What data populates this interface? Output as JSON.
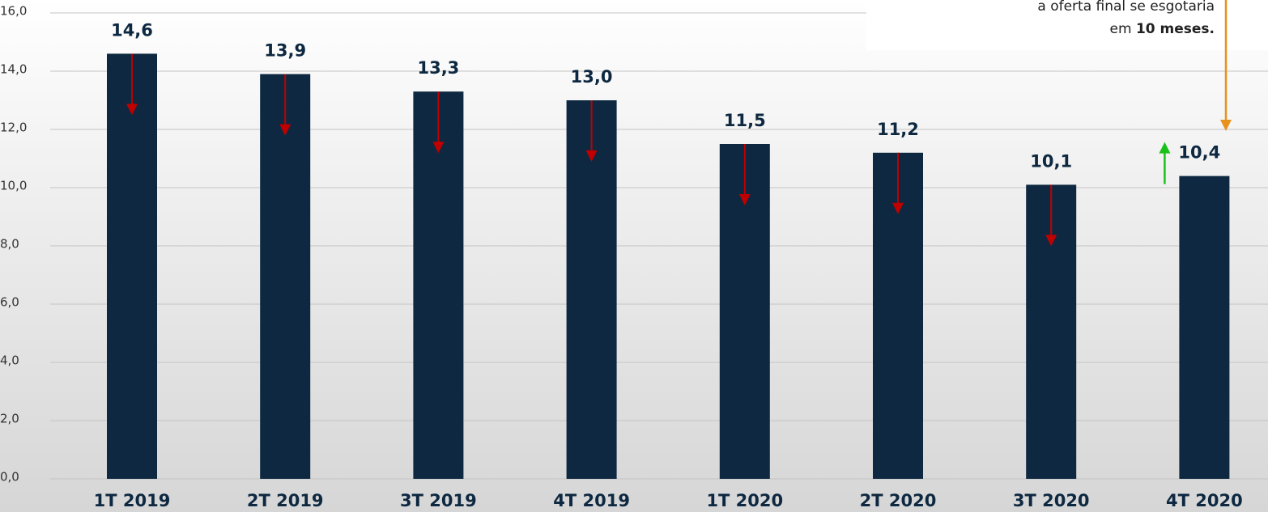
{
  "chart_data": {
    "type": "bar",
    "categories": [
      "1T 2019",
      "2T 2019",
      "3T 2019",
      "4T 2019",
      "1T 2020",
      "2T 2020",
      "3T 2020",
      "4T 2020"
    ],
    "values": [
      14.6,
      13.9,
      13.3,
      13.0,
      11.5,
      11.2,
      10.1,
      10.4
    ],
    "value_labels": [
      "14,6",
      "13,9",
      "13,3",
      "13,0",
      "11,5",
      "11,2",
      "10,1",
      "10,4"
    ],
    "color": "#0d2840",
    "ylim": [
      0,
      16
    ],
    "yticks": [
      {
        "value": 0,
        "label": "0,0"
      },
      {
        "value": 2,
        "label": "2,0"
      },
      {
        "value": 4,
        "label": "4,0"
      },
      {
        "value": 6,
        "label": "6,0"
      },
      {
        "value": 8,
        "label": "8,0"
      },
      {
        "value": 10,
        "label": "10,0"
      },
      {
        "value": 12,
        "label": "12,0"
      },
      {
        "value": 14,
        "label": "14,0"
      },
      {
        "value": 16,
        "label": "16,0"
      }
    ],
    "grid": true,
    "annotation": [
      "a oferta final se esgotaria",
      "em",
      "10 meses."
    ]
  }
}
